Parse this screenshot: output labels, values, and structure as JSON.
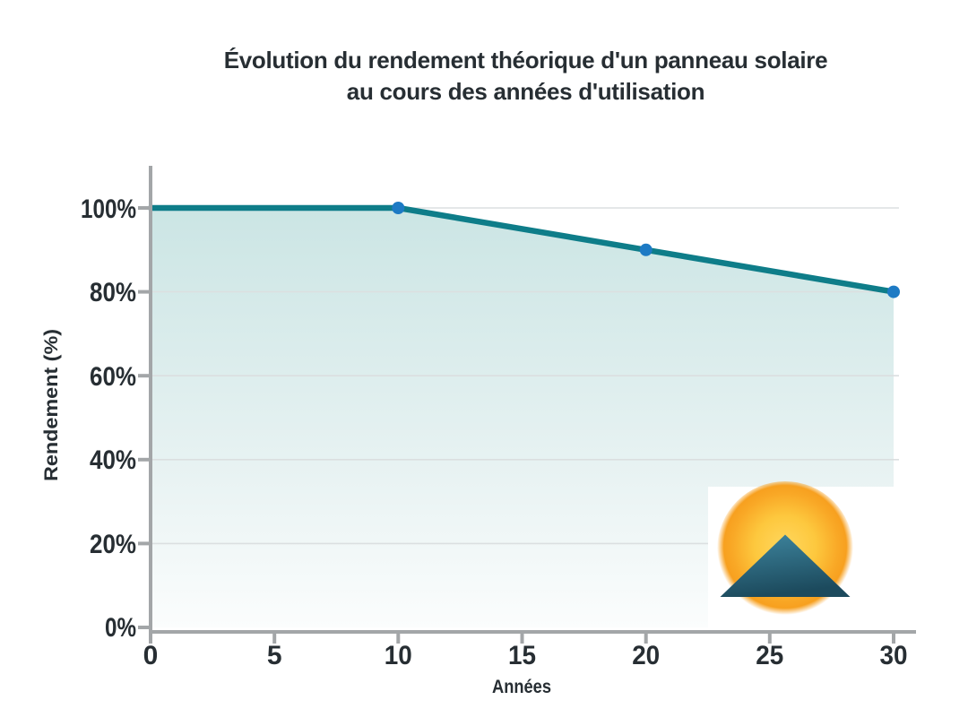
{
  "title": {
    "line1": "Évolution du rendement théorique d'un panneau solaire",
    "line2": "au cours des années d'utilisation"
  },
  "chart_data": {
    "type": "area",
    "x": [
      0,
      10,
      20,
      30
    ],
    "y": [
      100,
      100,
      90,
      80
    ],
    "marker_points": [
      {
        "x": 10,
        "y": 100
      },
      {
        "x": 20,
        "y": 90
      },
      {
        "x": 30,
        "y": 80
      }
    ],
    "x_ticks": [
      0,
      5,
      10,
      15,
      20,
      25,
      30
    ],
    "x_tick_labels": [
      "0",
      "5",
      "10",
      "15",
      "20",
      "25",
      "30"
    ],
    "y_ticks": [
      0,
      20,
      40,
      60,
      80,
      100
    ],
    "y_tick_labels": [
      "0%",
      "20%",
      "40%",
      "60%",
      "80%",
      "100%"
    ],
    "xlabel": "Années",
    "ylabel": "Rendement (%)",
    "xlim": [
      0,
      30
    ],
    "ylim": [
      0,
      100
    ],
    "grid": "horizontal",
    "legend": "none",
    "colors": {
      "line": "#0e7d89",
      "marker": "#1d7ac4",
      "area_top": "#cbe5e4",
      "area_bottom": "#fbfdfd",
      "axis": "#a3a6a8",
      "gridline": "#dbdfe0",
      "text": "#272e33"
    }
  },
  "logo": {
    "description": "sun behind mountain logo",
    "sun_inner": "#ffd75e",
    "sun_outer": "#f9a826",
    "mountain_top": "#3f87a0",
    "mountain_bottom": "#1c4a5d",
    "background": "#ffffff"
  }
}
